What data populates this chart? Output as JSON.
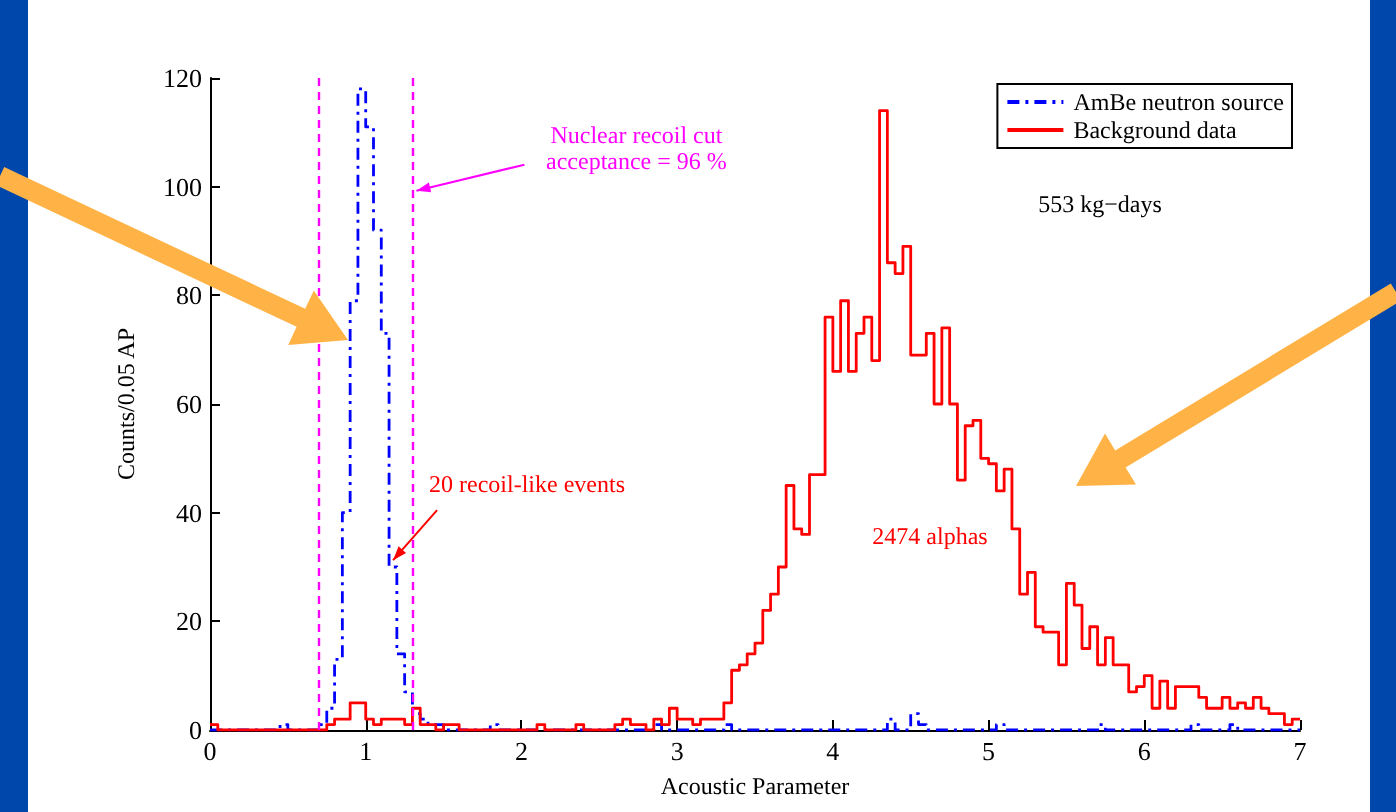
{
  "chart_data": {
    "type": "histogram",
    "xlabel": "Acoustic Parameter",
    "ylabel": "Counts/0.05 AP",
    "bins": [
      0,
      0.05,
      0.1,
      0.15,
      0.2,
      0.25,
      0.3,
      0.35,
      0.4,
      0.45,
      0.5,
      0.55,
      0.6,
      0.65,
      0.7,
      0.75,
      0.8,
      0.85,
      0.9,
      0.95,
      1,
      1.05,
      1.1,
      1.15,
      1.2,
      1.25,
      1.3,
      1.35,
      1.4,
      1.45,
      1.5,
      1.55,
      1.6,
      1.65,
      1.7,
      1.75,
      1.8,
      1.85,
      1.9,
      1.95,
      2,
      2.05,
      2.1,
      2.15,
      2.2,
      2.25,
      2.3,
      2.35,
      2.4,
      2.45,
      2.5,
      2.55,
      2.6,
      2.65,
      2.7,
      2.75,
      2.8,
      2.85,
      2.9,
      2.95,
      3,
      3.05,
      3.1,
      3.15,
      3.2,
      3.25,
      3.3,
      3.35,
      3.4,
      3.45,
      3.5,
      3.55,
      3.6,
      3.65,
      3.7,
      3.75,
      3.8,
      3.85,
      3.9,
      3.95,
      4,
      4.05,
      4.1,
      4.15,
      4.2,
      4.25,
      4.3,
      4.35,
      4.4,
      4.45,
      4.5,
      4.55,
      4.6,
      4.65,
      4.7,
      4.75,
      4.8,
      4.85,
      4.9,
      4.95,
      5,
      5.05,
      5.1,
      5.15,
      5.2,
      5.25,
      5.3,
      5.35,
      5.4,
      5.45,
      5.5,
      5.55,
      5.6,
      5.65,
      5.7,
      5.75,
      5.8,
      5.85,
      5.9,
      5.95,
      6,
      6.05,
      6.1,
      6.15,
      6.2,
      6.25,
      6.3,
      6.35,
      6.4,
      6.45,
      6.5,
      6.55,
      6.6,
      6.65,
      6.7,
      6.75,
      6.8,
      6.85,
      6.9,
      6.95,
      7
    ],
    "series": [
      {
        "name": "AmBe neutron source",
        "color": "#0000ff",
        "line_style": "dashed",
        "values": [
          0,
          0,
          0,
          0,
          0,
          0,
          0,
          0,
          0,
          1,
          0,
          0,
          0,
          0,
          1,
          4,
          13,
          40,
          79,
          118,
          111,
          92,
          73,
          30,
          14,
          7,
          3,
          2,
          1,
          1,
          0,
          0,
          0,
          0,
          0,
          0,
          1,
          0,
          0,
          0,
          0,
          0,
          0,
          0,
          0,
          0,
          0,
          0,
          0,
          0,
          0,
          0,
          0,
          0,
          0,
          0,
          0,
          1,
          0,
          0,
          0,
          0,
          0,
          0,
          0,
          0,
          1,
          0,
          0,
          0,
          0,
          0,
          0,
          0,
          0,
          0,
          0,
          0,
          0,
          0,
          0,
          0,
          0,
          0,
          0,
          0,
          0,
          2,
          0,
          0,
          3,
          1,
          0,
          0,
          0,
          0,
          0,
          0,
          0,
          0,
          0,
          1,
          0,
          0,
          0,
          0,
          0,
          0,
          0,
          0,
          0,
          0,
          0,
          0,
          1,
          0,
          0,
          0,
          0,
          0,
          0,
          0,
          0,
          0,
          0,
          0,
          1,
          0,
          0,
          0,
          0,
          1,
          0,
          0,
          0,
          0,
          0,
          0,
          0,
          0
        ]
      },
      {
        "name": "Background data",
        "color": "#ff0000",
        "line_style": "solid",
        "values": [
          1,
          0,
          0,
          0,
          0,
          0,
          0,
          0,
          0,
          0,
          0,
          0,
          0,
          0,
          0,
          1,
          2,
          2,
          5,
          5,
          2,
          1,
          2,
          2,
          2,
          1,
          4,
          1,
          1,
          0,
          1,
          1,
          0,
          0,
          0,
          0,
          0,
          0,
          0,
          0,
          0,
          0,
          1,
          0,
          0,
          0,
          0,
          1,
          0,
          0,
          0,
          0,
          1,
          2,
          1,
          1,
          0,
          2,
          1,
          4,
          2,
          2,
          1,
          2,
          2,
          2,
          5,
          11,
          12,
          14,
          16,
          22,
          25,
          30,
          45,
          37,
          36,
          47,
          47,
          76,
          66,
          79,
          66,
          73,
          76,
          68,
          114,
          86,
          84,
          89,
          69,
          69,
          73,
          60,
          74,
          60,
          46,
          56,
          57,
          50,
          49,
          44,
          48,
          37,
          25,
          29,
          19,
          18,
          18,
          12,
          27,
          23,
          15,
          19,
          12,
          17,
          12,
          12,
          7,
          8,
          10,
          4,
          9,
          4,
          8,
          8,
          8,
          6,
          4,
          4,
          6,
          4,
          5,
          4,
          6,
          4,
          3,
          3,
          1,
          2
        ]
      }
    ],
    "xlim": [
      0,
      7
    ],
    "xticks": [
      0,
      1,
      2,
      3,
      4,
      5,
      6,
      7
    ],
    "ylim": [
      0,
      120
    ],
    "yticks": [
      0,
      20,
      40,
      60,
      80,
      100,
      120
    ],
    "ref_lines": [
      {
        "axis": "x",
        "value": 0.7,
        "color": "#ff00ff",
        "line_style": "dashed"
      },
      {
        "axis": "x",
        "value": 1.3,
        "color": "#ff00ff",
        "line_style": "dashed"
      }
    ],
    "annotations": [
      {
        "text": "Nuclear recoil cut\nacceptance = 96 %",
        "x": 1.3,
        "y": 100
      },
      {
        "text": "20 recoil-like events",
        "x": 1.15,
        "y": 32
      },
      "2474 alphas",
      "553 kg−days"
    ],
    "legend": "top right",
    "grid": false
  }
}
